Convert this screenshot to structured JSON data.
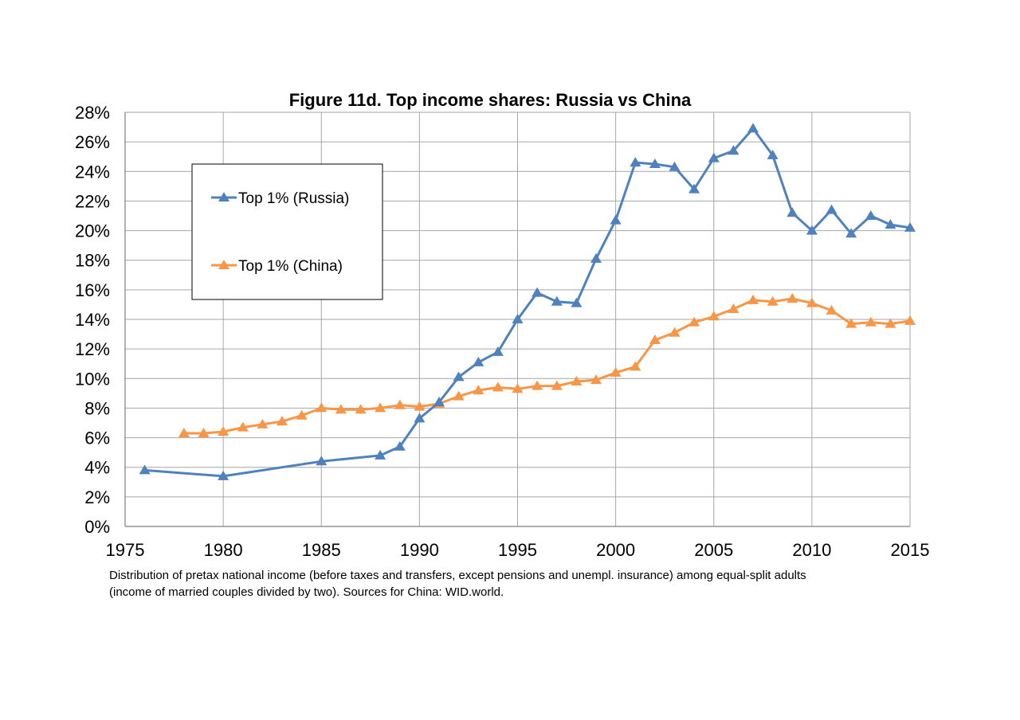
{
  "chart_data": {
    "type": "line",
    "title": "Figure 11d. Top income shares: Russia vs China",
    "xlim": [
      1975,
      2015
    ],
    "ylim": [
      0,
      28
    ],
    "x_ticks": [
      "1975",
      "1980",
      "1985",
      "1990",
      "1995",
      "2000",
      "2005",
      "2010",
      "2015"
    ],
    "y_ticks": [
      "0%",
      "2%",
      "4%",
      "6%",
      "8%",
      "10%",
      "12%",
      "14%",
      "16%",
      "18%",
      "20%",
      "22%",
      "24%",
      "26%",
      "28%"
    ],
    "grid": true,
    "legend_position": "top-left",
    "series": [
      {
        "name": "Top 1% (Russia)",
        "color": "#4F81BD",
        "marker": "triangle",
        "x": [
          1976,
          1980,
          1985,
          1988,
          1989,
          1990,
          1991,
          1992,
          1993,
          1994,
          1995,
          1996,
          1997,
          1998,
          1999,
          2000,
          2001,
          2002,
          2003,
          2004,
          2005,
          2006,
          2007,
          2008,
          2009,
          2010,
          2011,
          2012,
          2013,
          2014,
          2015
        ],
        "values": [
          3.8,
          3.4,
          4.4,
          4.8,
          5.4,
          7.3,
          8.4,
          10.1,
          11.1,
          11.8,
          14.0,
          15.8,
          15.2,
          15.1,
          18.1,
          20.7,
          24.6,
          24.5,
          24.3,
          22.8,
          24.9,
          25.4,
          26.9,
          25.1,
          21.2,
          20.0,
          21.4,
          19.8,
          21.0,
          20.4,
          20.2
        ]
      },
      {
        "name": "Top 1% (China)",
        "color": "#F79646",
        "marker": "triangle",
        "x": [
          1978,
          1979,
          1980,
          1981,
          1982,
          1983,
          1984,
          1985,
          1986,
          1987,
          1988,
          1989,
          1990,
          1991,
          1992,
          1993,
          1994,
          1995,
          1996,
          1997,
          1998,
          1999,
          2000,
          2001,
          2002,
          2003,
          2004,
          2005,
          2006,
          2007,
          2008,
          2009,
          2010,
          2011,
          2012,
          2013,
          2014,
          2015
        ],
        "values": [
          6.3,
          6.3,
          6.4,
          6.7,
          6.9,
          7.1,
          7.5,
          8.0,
          7.9,
          7.9,
          8.0,
          8.2,
          8.1,
          8.3,
          8.8,
          9.2,
          9.4,
          9.3,
          9.5,
          9.5,
          9.8,
          9.9,
          10.4,
          10.8,
          12.6,
          13.1,
          13.8,
          14.2,
          14.7,
          15.3,
          15.2,
          15.4,
          15.1,
          14.6,
          13.7,
          13.8,
          13.7,
          13.9
        ]
      }
    ],
    "note_lines": [
      "Distribution of pretax national income (before taxes and transfers, except pensions and unempl. insurance) among equal-split adults",
      "(income of married couples divided by two). Sources for China: WID.world."
    ]
  }
}
